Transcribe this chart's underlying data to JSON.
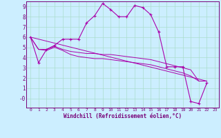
{
  "xlabel": "Windchill (Refroidissement éolien,°C)",
  "background_color": "#cceeff",
  "grid_color": "#aaddcc",
  "line_color": "#aa00aa",
  "xlim": [
    -0.5,
    23.5
  ],
  "ylim": [
    -0.9,
    9.5
  ],
  "ytick_vals": [
    0,
    1,
    2,
    3,
    4,
    5,
    6,
    7,
    8,
    9
  ],
  "ytick_labels": [
    "-0",
    "1",
    "2",
    "3",
    "4",
    "5",
    "6",
    "7",
    "8",
    "9"
  ],
  "xtick_vals": [
    0,
    1,
    2,
    3,
    4,
    5,
    6,
    7,
    8,
    9,
    10,
    11,
    12,
    13,
    14,
    15,
    16,
    17,
    18,
    19,
    20,
    21,
    22,
    23
  ],
  "series1_x": [
    0,
    1,
    2,
    3,
    4,
    5,
    6,
    7,
    8,
    9,
    10,
    11,
    12,
    13,
    14,
    15,
    16,
    17,
    18,
    19,
    20,
    21,
    22
  ],
  "series1_y": [
    6.0,
    3.5,
    4.8,
    5.2,
    5.8,
    5.8,
    5.8,
    7.4,
    8.1,
    9.3,
    8.7,
    8.0,
    8.0,
    9.1,
    8.9,
    8.2,
    6.5,
    3.1,
    3.1,
    3.1,
    -0.3,
    -0.5,
    1.5
  ],
  "series2_x": [
    0,
    1,
    2,
    3,
    4,
    5,
    6,
    7,
    8,
    9,
    10,
    11,
    12,
    13,
    14,
    15,
    16,
    17,
    18,
    19,
    20,
    21,
    22
  ],
  "series2_y": [
    6.0,
    4.8,
    4.8,
    5.1,
    4.8,
    4.6,
    4.5,
    4.4,
    4.4,
    4.3,
    4.3,
    4.2,
    4.1,
    4.0,
    3.9,
    3.8,
    3.6,
    3.4,
    3.2,
    3.0,
    2.8,
    1.7,
    1.7
  ],
  "series3_x": [
    0,
    1,
    2,
    3,
    4,
    5,
    6,
    7,
    8,
    9,
    10,
    11,
    12,
    13,
    14,
    15,
    16,
    17,
    18,
    19,
    20,
    21,
    22
  ],
  "series3_y": [
    6.0,
    4.8,
    4.7,
    5.0,
    4.7,
    4.3,
    4.1,
    4.0,
    3.9,
    3.9,
    3.8,
    3.7,
    3.6,
    3.5,
    3.4,
    3.3,
    3.1,
    2.9,
    2.7,
    2.5,
    2.2,
    1.7,
    1.7
  ],
  "series4_x": [
    0,
    22
  ],
  "series4_y": [
    6.0,
    1.7
  ]
}
